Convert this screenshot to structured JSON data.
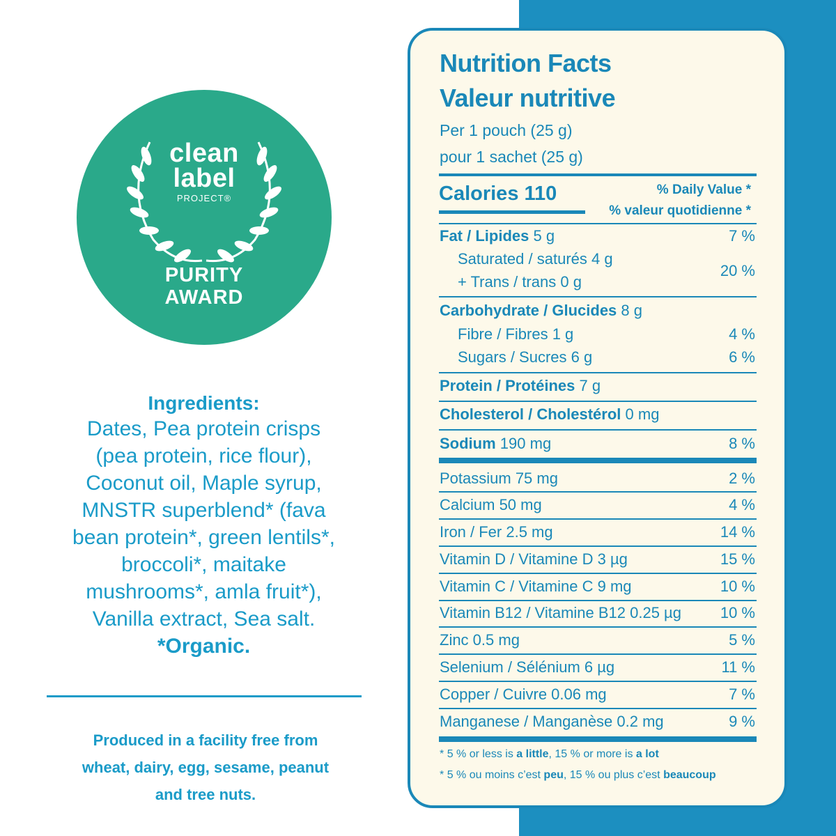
{
  "award": {
    "line1": "clean",
    "line2": "label",
    "line3": "PROJECT®",
    "line4": "PURITY",
    "line5": "AWARD"
  },
  "ingredients": {
    "title": "Ingredients:",
    "lines": [
      "Dates, Pea protein crisps",
      "(pea protein, rice flour),",
      "Coconut oil, Maple syrup,",
      "MNSTR superblend* (fava",
      "bean protein*, green lentils*,",
      "broccoli*, maitake",
      "mushrooms*, amla fruit*),",
      "Vanilla extract, Sea salt."
    ],
    "organic": "*Organic."
  },
  "facility": {
    "lines": [
      "Produced in a facility free from",
      "wheat, dairy, egg, sesame, peanut",
      "and tree nuts."
    ]
  },
  "nutrition": {
    "title_en": "Nutrition Facts",
    "title_fr": "Valeur nutritive",
    "serving_en": "Per 1 pouch (25 g)",
    "serving_fr": "pour 1 sachet (25 g)",
    "calories_label": "Calories 110",
    "dv_en": "% Daily Value",
    "dv_fr": "% valeur quotidienne",
    "asterisk": "*",
    "fat_label": "Fat / Lipides",
    "fat_amount": "5 g",
    "fat_dv": "7 %",
    "sat_line": "Saturated / saturés 4 g",
    "trans_line": "+ Trans / trans 0 g",
    "sat_trans_dv": "20 %",
    "carb_label": "Carbohydrate / Glucides",
    "carb_amount": "8 g",
    "fibre_line": "Fibre / Fibres 1 g",
    "fibre_dv": "4 %",
    "sugars_line": "Sugars / Sucres 6 g",
    "sugars_dv": "6 %",
    "protein_label": "Protein / Protéines",
    "protein_amount": "7 g",
    "chol_label": "Cholesterol / Cholestérol",
    "chol_amount": "0 mg",
    "sodium_label": "Sodium",
    "sodium_amount": "190 mg",
    "sodium_dv": "8  %",
    "minerals": [
      {
        "name": "Potassium 75 mg",
        "dv": "2 %"
      },
      {
        "name": "Calcium 50 mg",
        "dv": "4 %"
      },
      {
        "name": "Iron / Fer 2.5 mg",
        "dv": "14 %"
      },
      {
        "name": "Vitamin D / Vitamine D 3 µg",
        "dv": "15 %"
      },
      {
        "name": "Vitamin C / Vitamine C 9 mg",
        "dv": "10 %"
      },
      {
        "name": "Vitamin B12 / Vitamine B12 0.25 µg",
        "dv": "10 %"
      },
      {
        "name": "Zinc 0.5 mg",
        "dv": "5 %"
      },
      {
        "name": "Selenium / Sélénium 6 µg",
        "dv": "11 %"
      },
      {
        "name": "Copper / Cuivre 0.06 mg",
        "dv": "7 %"
      },
      {
        "name": "Manganese / Manganèse 0.2 mg",
        "dv": "9 %"
      }
    ],
    "foot_en_a": "5 % or less is ",
    "foot_en_b": "a little",
    "foot_en_c": ", 15 % or more is ",
    "foot_en_d": "a lot",
    "foot_fr_a": "5 % ou moins c’est ",
    "foot_fr_b": "peu",
    "foot_fr_c": ", 15 % ou plus c’est ",
    "foot_fr_d": "beaucoup"
  },
  "colors": {
    "brand_blue": "#1a88b8",
    "text_blue": "#1a9bc8",
    "badge_green": "#2aa98a",
    "label_bg": "#fdf9ea"
  }
}
